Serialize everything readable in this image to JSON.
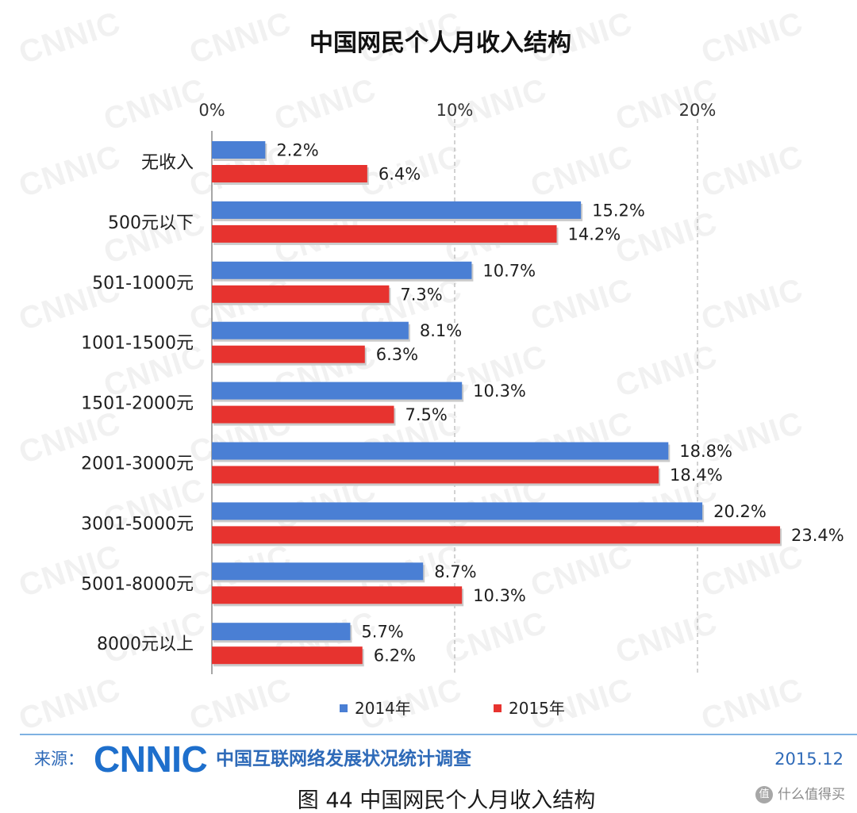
{
  "chart_data": {
    "type": "bar",
    "orientation": "horizontal",
    "title": "中国网民个人月收入结构",
    "categories": [
      "无收入",
      "500元以下",
      "501-1000元",
      "1001-1500元",
      "1501-2000元",
      "2001-3000元",
      "3001-5000元",
      "5001-8000元",
      "8000元以上"
    ],
    "series": [
      {
        "name": "2014年",
        "color": "#4a7fd4",
        "values": [
          2.2,
          15.2,
          10.7,
          8.1,
          10.3,
          18.8,
          20.2,
          8.7,
          5.7
        ],
        "labels": [
          "2.2%",
          "15.2%",
          "10.7%",
          "8.1%",
          "10.3%",
          "18.8%",
          "20.2%",
          "8.7%",
          "5.7%"
        ]
      },
      {
        "name": "2015年",
        "color": "#e7332f",
        "values": [
          6.4,
          14.2,
          7.3,
          6.3,
          7.5,
          18.4,
          23.4,
          10.3,
          6.2
        ],
        "labels": [
          "6.4%",
          "14.2%",
          "7.3%",
          "6.3%",
          "7.5%",
          "18.4%",
          "23.4%",
          "10.3%",
          "6.2%"
        ]
      }
    ],
    "xticks": [
      0,
      10,
      20
    ],
    "xtick_labels": [
      "0%",
      "10%",
      "20%"
    ],
    "xlim": [
      0,
      25
    ],
    "x_axis_position": "top",
    "grid": true,
    "legend": "bottom"
  },
  "footer": {
    "source_label": "来源：",
    "logo_text": "CNNIC",
    "survey_name": "中国互联网络发展状况统计调查",
    "date": "2015.12",
    "rule_color": "#7fb2e2",
    "text_color": "#2e6ab8",
    "logo_color": "#1e6fcc"
  },
  "caption": "图 44 中国网民个人月收入结构",
  "watermarks": {
    "background_text": "CNNIC",
    "site_logo_glyph": "值",
    "site_name": "什么值得买"
  }
}
